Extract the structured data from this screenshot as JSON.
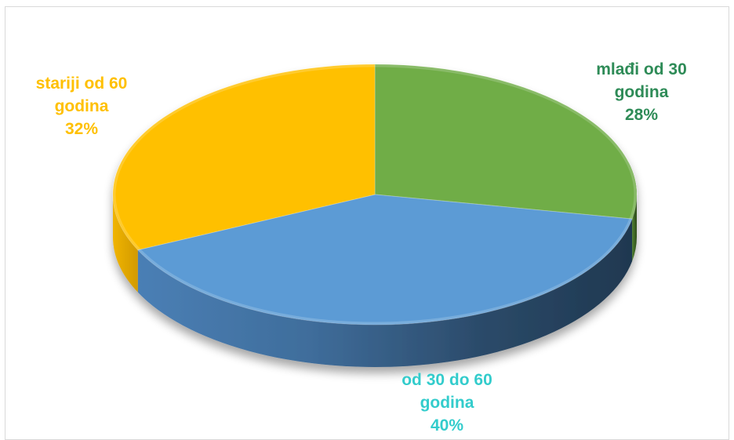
{
  "chart_data": {
    "type": "pie",
    "title": "",
    "unit": "%",
    "slices": [
      {
        "line1": "mlađi od 30",
        "line2": "godina",
        "value_label": "28%",
        "value": 28,
        "color": "#70ad47",
        "label_color": "#2e8b57"
      },
      {
        "line1": "od 30 do 60",
        "line2": "godina",
        "value_label": "40%",
        "value": 40,
        "color": "#5b9bd5",
        "label_color": "#33cccc"
      },
      {
        "line1": "stariji od 60",
        "line2": "godina",
        "value_label": "32%",
        "value": 32,
        "color": "#ffc000",
        "label_color": "#ffc000"
      }
    ]
  }
}
